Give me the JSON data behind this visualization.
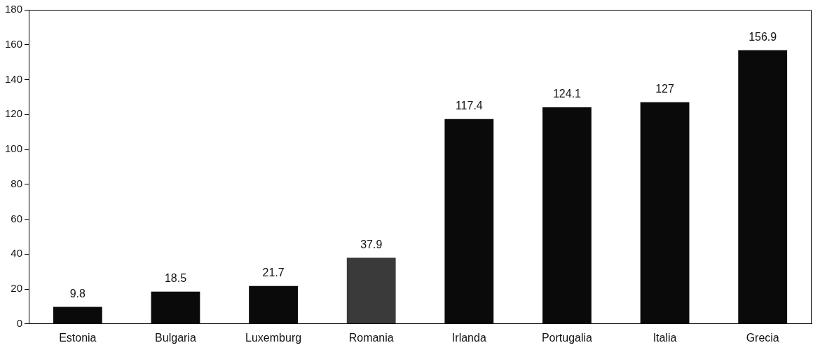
{
  "chart_data": {
    "type": "bar",
    "categories": [
      "Estonia",
      "Bulgaria",
      "Luxemburg",
      "Romania",
      "Irlanda",
      "Portugalia",
      "Italia",
      "Grecia"
    ],
    "values": [
      9.8,
      18.5,
      21.7,
      37.9,
      117.4,
      124.1,
      127,
      156.9
    ],
    "colors": [
      "#0a0a0a",
      "#0a0a0a",
      "#0a0a0a",
      "#3a3a3a",
      "#0a0a0a",
      "#0a0a0a",
      "#0a0a0a",
      "#0a0a0a"
    ],
    "ylim": [
      0,
      180
    ],
    "yticks": [
      0,
      20,
      40,
      60,
      80,
      100,
      120,
      140,
      160,
      180
    ],
    "data_labels": true,
    "grid": false,
    "legend": false
  }
}
